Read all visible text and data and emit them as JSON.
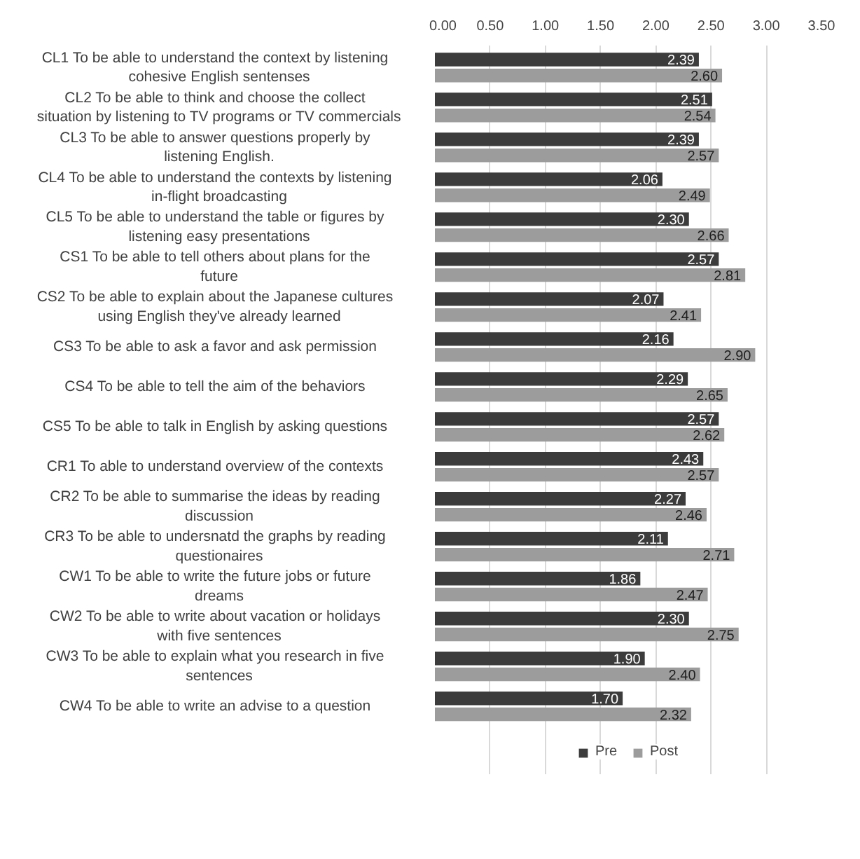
{
  "chart_data": {
    "type": "bar",
    "orientation": "horizontal",
    "categories": [
      "CL1   To be able to understand the context by listening cohesive English sentenses",
      "CL2   To be able to think and choose the collect situation by listening to TV programs or TV commercials",
      "CL3   To be able to answer questions properly by listening English.",
      "CL4   To be able to understand the contexts by listening in-flight broadcasting",
      "CL5   To be able to understand the table or figures by listening easy presentations",
      "CS1   To be able to tell others about plans for the future",
      "CS2   To be able to explain about the Japanese cultures using English they've already learned",
      "CS3   To be able to ask a favor and ask permission",
      "CS4   To be able to tell the aim of the behaviors",
      "CS5   To be able to talk in English by asking questions",
      "CR1   To able to understand overview of the contexts",
      "CR2   To be able to summarise the ideas by reading discussion",
      "CR3   To be able to undersnatd the graphs by reading questionaires",
      "CW1   To be able to write the future jobs or future dreams",
      "CW2   To be able to write about vacation or holidays with five sentences",
      "CW3   To be able to explain what you research in five sentences",
      "CW4   To be able to write an advise to a question"
    ],
    "series": [
      {
        "name": "Pre",
        "color": "#3c3c3c",
        "values": [
          2.39,
          2.51,
          2.39,
          2.06,
          2.3,
          2.57,
          2.07,
          2.16,
          2.29,
          2.57,
          2.43,
          2.27,
          2.11,
          1.86,
          2.3,
          1.9,
          1.7
        ],
        "value_labels": [
          "2.39",
          "2.51",
          "2.39",
          "2.06",
          "2.30",
          "2.57",
          "2.07",
          "2.16",
          "2.29",
          "2.57",
          "2.43",
          "2.27",
          "2.11",
          "1.86",
          "2.30",
          "1.90",
          "1.70"
        ]
      },
      {
        "name": "Post",
        "color": "#9c9c9c",
        "values": [
          2.6,
          2.54,
          2.57,
          2.49,
          2.66,
          2.81,
          2.41,
          2.9,
          2.65,
          2.62,
          2.57,
          2.46,
          2.71,
          2.47,
          2.75,
          2.4,
          2.32
        ],
        "value_labels": [
          "2.60",
          "2.54",
          "2.57",
          "2.49",
          "2.66",
          "2.81",
          "2.41",
          "2.90",
          "2.65",
          "2.62",
          "2.57",
          "2.46",
          "2.71",
          "2.47",
          "2.75",
          "2.40",
          "2.32"
        ]
      }
    ],
    "xlim": [
      0,
      3.5
    ],
    "xticks": [
      {
        "value": 0,
        "label": "0.00"
      },
      {
        "value": 0.5,
        "label": "0.50"
      },
      {
        "value": 1,
        "label": "1.00"
      },
      {
        "value": 1.5,
        "label": "1.50"
      },
      {
        "value": 2,
        "label": "2.00"
      },
      {
        "value": 2.5,
        "label": "2.50"
      },
      {
        "value": 3,
        "label": "3.00"
      },
      {
        "value": 3.5,
        "label": "3.50"
      }
    ],
    "grid": "x",
    "legend": "bottom"
  }
}
